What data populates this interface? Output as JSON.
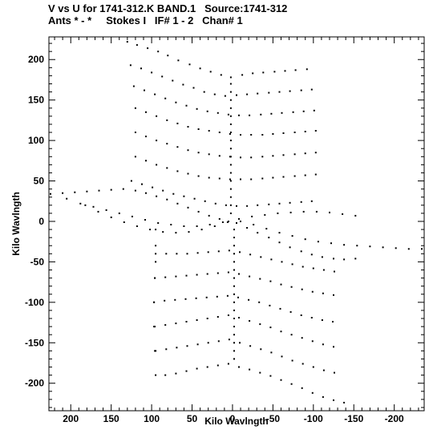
{
  "chart_data": {
    "type": "scatter",
    "title": "V vs U for 1741-312.K BAND.1   Source:1741-312",
    "subtitle": "Ants * - *     Stokes I   IF# 1 - 2   Chan# 1",
    "xlabel": "Kilo Wavlngth",
    "ylabel": "Kilo Wavlngth",
    "xlim": [
      227,
      -237
    ],
    "ylim": [
      -234,
      228
    ],
    "x_ticks": [
      200,
      150,
      100,
      50,
      0,
      -50,
      -100,
      -150,
      -200
    ],
    "y_ticks": [
      -200,
      -150,
      -100,
      -50,
      0,
      50,
      100,
      150,
      200
    ],
    "grid": false,
    "marker_color": "#000000",
    "tracks": {
      "neg_slope_arms": {
        "description_units": "kilo wavelength",
        "u_start": [
          130,
          120,
          110,
          100,
          100,
          100,
          100,
          100,
          100,
          100,
          97,
          95
        ],
        "v_start": [
          222,
          193,
          167,
          140,
          110,
          80,
          52,
          30,
          -10,
          -40,
          -70,
          -100
        ],
        "u_end": [
          0,
          0,
          0,
          0,
          0,
          0,
          0,
          0,
          0,
          0,
          0,
          0
        ],
        "v_end": [
          178,
          155,
          135,
          115,
          97,
          80,
          55,
          35,
          -55,
          -75,
          -100,
          -120
        ]
      }
    },
    "points": [
      [
        130,
        222
      ],
      [
        118,
        218
      ],
      [
        105,
        214
      ],
      [
        92,
        210
      ],
      [
        80,
        205
      ],
      [
        67,
        199
      ],
      [
        53,
        194
      ],
      [
        40,
        189
      ],
      [
        27,
        185
      ],
      [
        14,
        181
      ],
      [
        2,
        178
      ],
      [
        -12,
        181
      ],
      [
        -25,
        183
      ],
      [
        -38,
        184
      ],
      [
        -52,
        185
      ],
      [
        -65,
        186
      ],
      [
        -78,
        187
      ],
      [
        -92,
        188
      ],
      [
        126,
        193
      ],
      [
        113,
        189
      ],
      [
        100,
        184
      ],
      [
        87,
        179
      ],
      [
        74,
        174
      ],
      [
        61,
        169
      ],
      [
        48,
        165
      ],
      [
        35,
        160
      ],
      [
        22,
        157
      ],
      [
        9,
        155
      ],
      [
        -5,
        156
      ],
      [
        -18,
        157
      ],
      [
        -31,
        158
      ],
      [
        -45,
        159
      ],
      [
        -58,
        160
      ],
      [
        -71,
        161
      ],
      [
        -85,
        162
      ],
      [
        -98,
        163
      ],
      [
        122,
        167
      ],
      [
        109,
        162
      ],
      [
        96,
        157
      ],
      [
        83,
        152
      ],
      [
        70,
        147
      ],
      [
        57,
        143
      ],
      [
        44,
        139
      ],
      [
        31,
        136
      ],
      [
        18,
        134
      ],
      [
        5,
        132
      ],
      [
        -8,
        131
      ],
      [
        -21,
        131
      ],
      [
        -35,
        132
      ],
      [
        -48,
        133
      ],
      [
        -61,
        134
      ],
      [
        -75,
        135
      ],
      [
        -88,
        136
      ],
      [
        -101,
        137
      ],
      [
        120,
        140
      ],
      [
        107,
        135
      ],
      [
        94,
        130
      ],
      [
        81,
        125
      ],
      [
        68,
        121
      ],
      [
        55,
        117
      ],
      [
        42,
        114
      ],
      [
        29,
        112
      ],
      [
        16,
        110
      ],
      [
        3,
        108
      ],
      [
        -10,
        107
      ],
      [
        -23,
        107
      ],
      [
        -37,
        107
      ],
      [
        -50,
        108
      ],
      [
        -63,
        109
      ],
      [
        -77,
        110
      ],
      [
        -90,
        111
      ],
      [
        -103,
        112
      ],
      [
        120,
        110
      ],
      [
        107,
        105
      ],
      [
        94,
        100
      ],
      [
        81,
        96
      ],
      [
        68,
        92
      ],
      [
        55,
        88
      ],
      [
        42,
        85
      ],
      [
        29,
        83
      ],
      [
        16,
        81
      ],
      [
        3,
        80
      ],
      [
        -10,
        79
      ],
      [
        -23,
        79
      ],
      [
        -37,
        80
      ],
      [
        -50,
        81
      ],
      [
        -63,
        82
      ],
      [
        -77,
        83
      ],
      [
        -90,
        84
      ],
      [
        -103,
        85
      ],
      [
        120,
        80
      ],
      [
        107,
        75
      ],
      [
        94,
        70
      ],
      [
        81,
        66
      ],
      [
        68,
        62
      ],
      [
        55,
        59
      ],
      [
        42,
        56
      ],
      [
        29,
        54
      ],
      [
        16,
        53
      ],
      [
        3,
        52
      ],
      [
        -10,
        52
      ],
      [
        -23,
        52
      ],
      [
        -37,
        53
      ],
      [
        -50,
        54
      ],
      [
        -63,
        55
      ],
      [
        -77,
        56
      ],
      [
        -90,
        57
      ],
      [
        -103,
        58
      ],
      [
        125,
        50
      ],
      [
        112,
        46
      ],
      [
        99,
        42
      ],
      [
        86,
        38
      ],
      [
        73,
        34
      ],
      [
        60,
        31
      ],
      [
        47,
        28
      ],
      [
        34,
        25
      ],
      [
        21,
        22
      ],
      [
        8,
        20
      ],
      [
        -5,
        19
      ],
      [
        -18,
        19
      ],
      [
        -31,
        20
      ],
      [
        -45,
        21
      ],
      [
        -58,
        22
      ],
      [
        -71,
        23
      ],
      [
        -85,
        24
      ],
      [
        -98,
        25
      ],
      [
        225,
        34
      ],
      [
        210,
        35
      ],
      [
        195,
        36
      ],
      [
        180,
        37
      ],
      [
        165,
        38
      ],
      [
        150,
        39
      ],
      [
        135,
        40
      ],
      [
        120,
        38
      ],
      [
        107,
        35
      ],
      [
        94,
        31
      ],
      [
        81,
        27
      ],
      [
        68,
        22
      ],
      [
        55,
        17
      ],
      [
        42,
        12
      ],
      [
        29,
        7
      ],
      [
        16,
        3
      ],
      [
        5,
        0
      ],
      [
        -5,
        -2
      ],
      [
        -18,
        -8
      ],
      [
        -31,
        -14
      ],
      [
        -45,
        -20
      ],
      [
        -58,
        -26
      ],
      [
        -71,
        -32
      ],
      [
        -85,
        -37
      ],
      [
        -98,
        -41
      ],
      [
        -111,
        -44
      ],
      [
        -125,
        -46
      ],
      [
        -138,
        -47
      ],
      [
        -152,
        -46
      ],
      [
        205,
        28
      ],
      [
        188,
        22
      ],
      [
        172,
        18
      ],
      [
        156,
        14
      ],
      [
        140,
        10
      ],
      [
        124,
        6
      ],
      [
        108,
        2
      ],
      [
        92,
        -2
      ],
      [
        76,
        -4
      ],
      [
        60,
        -6
      ],
      [
        44,
        -6
      ],
      [
        28,
        -4
      ],
      [
        12,
        -1
      ],
      [
        -8,
        3
      ],
      [
        -24,
        6
      ],
      [
        -40,
        8
      ],
      [
        -56,
        10
      ],
      [
        -72,
        11
      ],
      [
        -88,
        12
      ],
      [
        -104,
        12
      ],
      [
        -120,
        11
      ],
      [
        -136,
        9
      ],
      [
        -152,
        7
      ],
      [
        182,
        20
      ],
      [
        166,
        12
      ],
      [
        150,
        5
      ],
      [
        134,
        -1
      ],
      [
        118,
        -6
      ],
      [
        102,
        -10
      ],
      [
        86,
        -13
      ],
      [
        70,
        -14
      ],
      [
        54,
        -13
      ],
      [
        38,
        -10
      ],
      [
        22,
        -6
      ],
      [
        6,
        -1
      ],
      [
        -10,
        0
      ],
      [
        -26,
        -4
      ],
      [
        -42,
        -9
      ],
      [
        -58,
        -14
      ],
      [
        -74,
        -18
      ],
      [
        -90,
        -22
      ],
      [
        -106,
        -25
      ],
      [
        -122,
        -27
      ],
      [
        -138,
        -29
      ],
      [
        -154,
        -30
      ],
      [
        -170,
        -31
      ],
      [
        -186,
        -32
      ],
      [
        -202,
        -33
      ],
      [
        -218,
        -34
      ],
      [
        -234,
        -34
      ],
      [
        95,
        -10
      ],
      [
        95,
        -30
      ],
      [
        95,
        -50
      ],
      [
        96,
        -70
      ],
      [
        97,
        -100
      ],
      [
        97,
        -130
      ],
      [
        96,
        -160
      ],
      [
        95,
        -190
      ],
      [
        83,
        -190
      ],
      [
        70,
        -188
      ],
      [
        57,
        -185
      ],
      [
        44,
        -182
      ],
      [
        31,
        -180
      ],
      [
        18,
        -178
      ],
      [
        5,
        -176
      ],
      [
        -8,
        -180
      ],
      [
        -21,
        -183
      ],
      [
        -34,
        -187
      ],
      [
        -47,
        -191
      ],
      [
        -60,
        -196
      ],
      [
        -73,
        -201
      ],
      [
        -86,
        -206
      ],
      [
        -99,
        -212
      ],
      [
        -112,
        -217
      ],
      [
        -125,
        -221
      ],
      [
        -138,
        -224
      ],
      [
        95,
        -160
      ],
      [
        82,
        -158
      ],
      [
        69,
        -156
      ],
      [
        56,
        -154
      ],
      [
        43,
        -152
      ],
      [
        30,
        -150
      ],
      [
        17,
        -148
      ],
      [
        4,
        -146
      ],
      [
        -9,
        -150
      ],
      [
        -22,
        -154
      ],
      [
        -35,
        -158
      ],
      [
        -48,
        -162
      ],
      [
        -61,
        -167
      ],
      [
        -74,
        -172
      ],
      [
        -87,
        -176
      ],
      [
        -100,
        -180
      ],
      [
        -113,
        -184
      ],
      [
        -126,
        -187
      ],
      [
        96,
        -130
      ],
      [
        83,
        -128
      ],
      [
        70,
        -126
      ],
      [
        57,
        -124
      ],
      [
        44,
        -122
      ],
      [
        31,
        -120
      ],
      [
        18,
        -118
      ],
      [
        5,
        -116
      ],
      [
        -8,
        -119
      ],
      [
        -21,
        -123
      ],
      [
        -34,
        -127
      ],
      [
        -47,
        -131
      ],
      [
        -60,
        -136
      ],
      [
        -73,
        -140
      ],
      [
        -86,
        -144
      ],
      [
        -99,
        -148
      ],
      [
        -112,
        -152
      ],
      [
        -125,
        -155
      ],
      [
        97,
        -100
      ],
      [
        84,
        -98
      ],
      [
        71,
        -97
      ],
      [
        58,
        -96
      ],
      [
        45,
        -95
      ],
      [
        32,
        -94
      ],
      [
        19,
        -93
      ],
      [
        6,
        -92
      ],
      [
        -7,
        -94
      ],
      [
        -20,
        -97
      ],
      [
        -33,
        -100
      ],
      [
        -46,
        -104
      ],
      [
        -59,
        -108
      ],
      [
        -72,
        -112
      ],
      [
        -85,
        -116
      ],
      [
        -98,
        -119
      ],
      [
        -111,
        -122
      ],
      [
        -124,
        -124
      ],
      [
        96,
        -70
      ],
      [
        83,
        -69
      ],
      [
        70,
        -68
      ],
      [
        57,
        -67
      ],
      [
        44,
        -66
      ],
      [
        31,
        -65
      ],
      [
        18,
        -64
      ],
      [
        5,
        -63
      ],
      [
        -8,
        -65
      ],
      [
        -21,
        -68
      ],
      [
        -34,
        -71
      ],
      [
        -47,
        -74
      ],
      [
        -60,
        -78
      ],
      [
        -73,
        -81
      ],
      [
        -86,
        -84
      ],
      [
        -99,
        -87
      ],
      [
        -112,
        -89
      ],
      [
        -125,
        -91
      ],
      [
        95,
        -40
      ],
      [
        82,
        -40
      ],
      [
        69,
        -40
      ],
      [
        56,
        -40
      ],
      [
        43,
        -39
      ],
      [
        30,
        -38
      ],
      [
        17,
        -37
      ],
      [
        4,
        -36
      ],
      [
        -9,
        -38
      ],
      [
        -22,
        -41
      ],
      [
        -35,
        -44
      ],
      [
        -48,
        -47
      ],
      [
        -61,
        -50
      ],
      [
        -74,
        -53
      ],
      [
        -87,
        -56
      ],
      [
        -100,
        -58
      ],
      [
        -113,
        -60
      ],
      [
        -126,
        -62
      ],
      [
        2,
        170
      ],
      [
        2,
        160
      ],
      [
        2,
        150
      ],
      [
        2,
        140
      ],
      [
        2,
        130
      ],
      [
        2,
        120
      ],
      [
        2,
        110
      ],
      [
        2,
        100
      ],
      [
        2,
        90
      ],
      [
        2,
        80
      ],
      [
        2,
        70
      ],
      [
        2,
        60
      ],
      [
        2,
        50
      ],
      [
        2,
        40
      ],
      [
        2,
        30
      ],
      [
        2,
        20
      ],
      [
        2,
        10
      ],
      [
        -2,
        -10
      ],
      [
        -2,
        -20
      ],
      [
        -2,
        -30
      ],
      [
        -2,
        -40
      ],
      [
        -2,
        -50
      ],
      [
        -2,
        -60
      ],
      [
        -2,
        -70
      ],
      [
        -2,
        -80
      ],
      [
        -2,
        -90
      ],
      [
        -2,
        -100
      ],
      [
        -2,
        -110
      ],
      [
        -2,
        -120
      ],
      [
        -2,
        -130
      ],
      [
        -2,
        -140
      ],
      [
        -2,
        -150
      ],
      [
        -2,
        -160
      ],
      [
        -2,
        -170
      ]
    ]
  }
}
